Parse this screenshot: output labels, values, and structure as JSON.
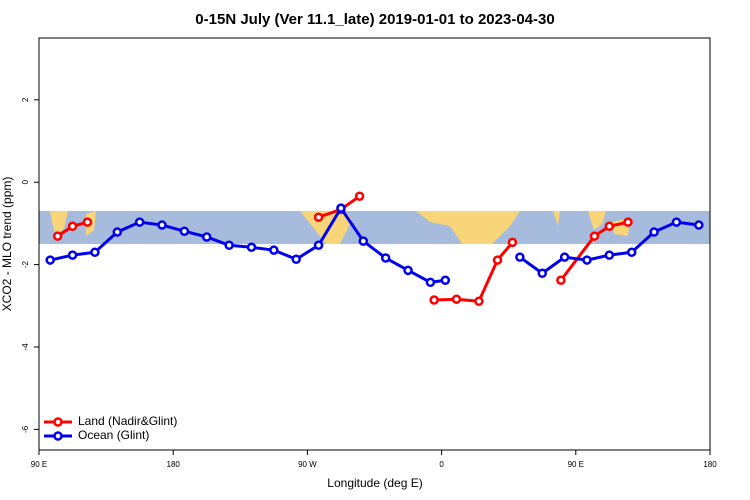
{
  "chart_data": {
    "type": "line",
    "title": "0-15N July (Ver 11.1_late)   2019-01-01 to 2023-04-30",
    "x_label": "Longitude (deg E)",
    "y_label": "XCO2 - MLO trend (ppm)",
    "xlim": [
      90,
      540
    ],
    "xticks": [
      {
        "value": 90,
        "label": "90 E"
      },
      180,
      {
        "value": 270,
        "label": "90 W"
      },
      {
        "value": 360,
        "label": "0"
      },
      {
        "value": 450,
        "label": "90 E"
      },
      {
        "value": 540,
        "label": "180"
      }
    ],
    "ylim": [
      -6.5,
      3.5
    ],
    "yticks": [
      -6,
      -4,
      -2,
      0,
      2
    ],
    "legend": "bottom-left",
    "series": [
      {
        "name": "Land (Nadir&Glint)",
        "color": "#ff0000",
        "x": [
          102.5,
          112.5,
          122.5,
          null,
          277.5,
          292.5,
          305,
          null,
          355,
          370,
          385,
          397.5,
          407.5,
          null,
          440,
          462.5,
          472.5,
          485
        ],
        "values": [
          -1.31,
          -1.07,
          -0.97,
          null,
          -0.85,
          -0.66,
          -0.34,
          null,
          -2.86,
          -2.84,
          -2.89,
          -1.89,
          -1.46,
          null,
          -2.38,
          -1.31,
          -1.07,
          -0.97
        ]
      },
      {
        "name": "Ocean (Glint)",
        "color": "#0000ee",
        "x": [
          97.5,
          112.5,
          127.5,
          142.5,
          157.5,
          172.5,
          187.5,
          202.5,
          217.5,
          232.5,
          247.5,
          262.5,
          277.5,
          292.5,
          307.5,
          322.5,
          337.5,
          352.5,
          362.5,
          null,
          412.5,
          427.5,
          442.5,
          457.5,
          472.5,
          487.5,
          502.5,
          517.5,
          532.5
        ],
        "values": [
          -1.89,
          -1.77,
          -1.7,
          -1.21,
          -0.97,
          -1.04,
          -1.19,
          -1.33,
          -1.53,
          -1.58,
          -1.65,
          -1.87,
          -1.53,
          -0.63,
          -1.43,
          -1.84,
          -2.14,
          -2.43,
          -2.38,
          null,
          -1.82,
          -2.21,
          -1.82,
          -1.89,
          -1.77,
          -1.7,
          -1.21,
          -0.97,
          -1.04
        ]
      }
    ]
  }
}
